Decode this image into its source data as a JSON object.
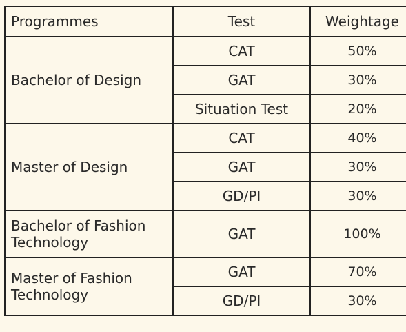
{
  "table": {
    "headers": [
      "Programmes",
      "Test",
      "Weightage"
    ],
    "groups": [
      {
        "programme": "Bachelor of Design",
        "rows": [
          {
            "test": "CAT",
            "weightage": "50%"
          },
          {
            "test": "GAT",
            "weightage": "30%"
          },
          {
            "test": "Situation Test",
            "weightage": "20%"
          }
        ]
      },
      {
        "programme": "Master of Design",
        "rows": [
          {
            "test": "CAT",
            "weightage": "40%"
          },
          {
            "test": "GAT",
            "weightage": "30%"
          },
          {
            "test": "GD/PI",
            "weightage": "30%"
          }
        ]
      },
      {
        "programme": "Bachelor of Fashion Technology",
        "rows": [
          {
            "test": "GAT",
            "weightage": "100%"
          }
        ]
      },
      {
        "programme": "Master of Fashion Technology",
        "rows": [
          {
            "test": "GAT",
            "weightage": "70%"
          },
          {
            "test": "GD/PI",
            "weightage": "30%"
          }
        ]
      }
    ]
  }
}
